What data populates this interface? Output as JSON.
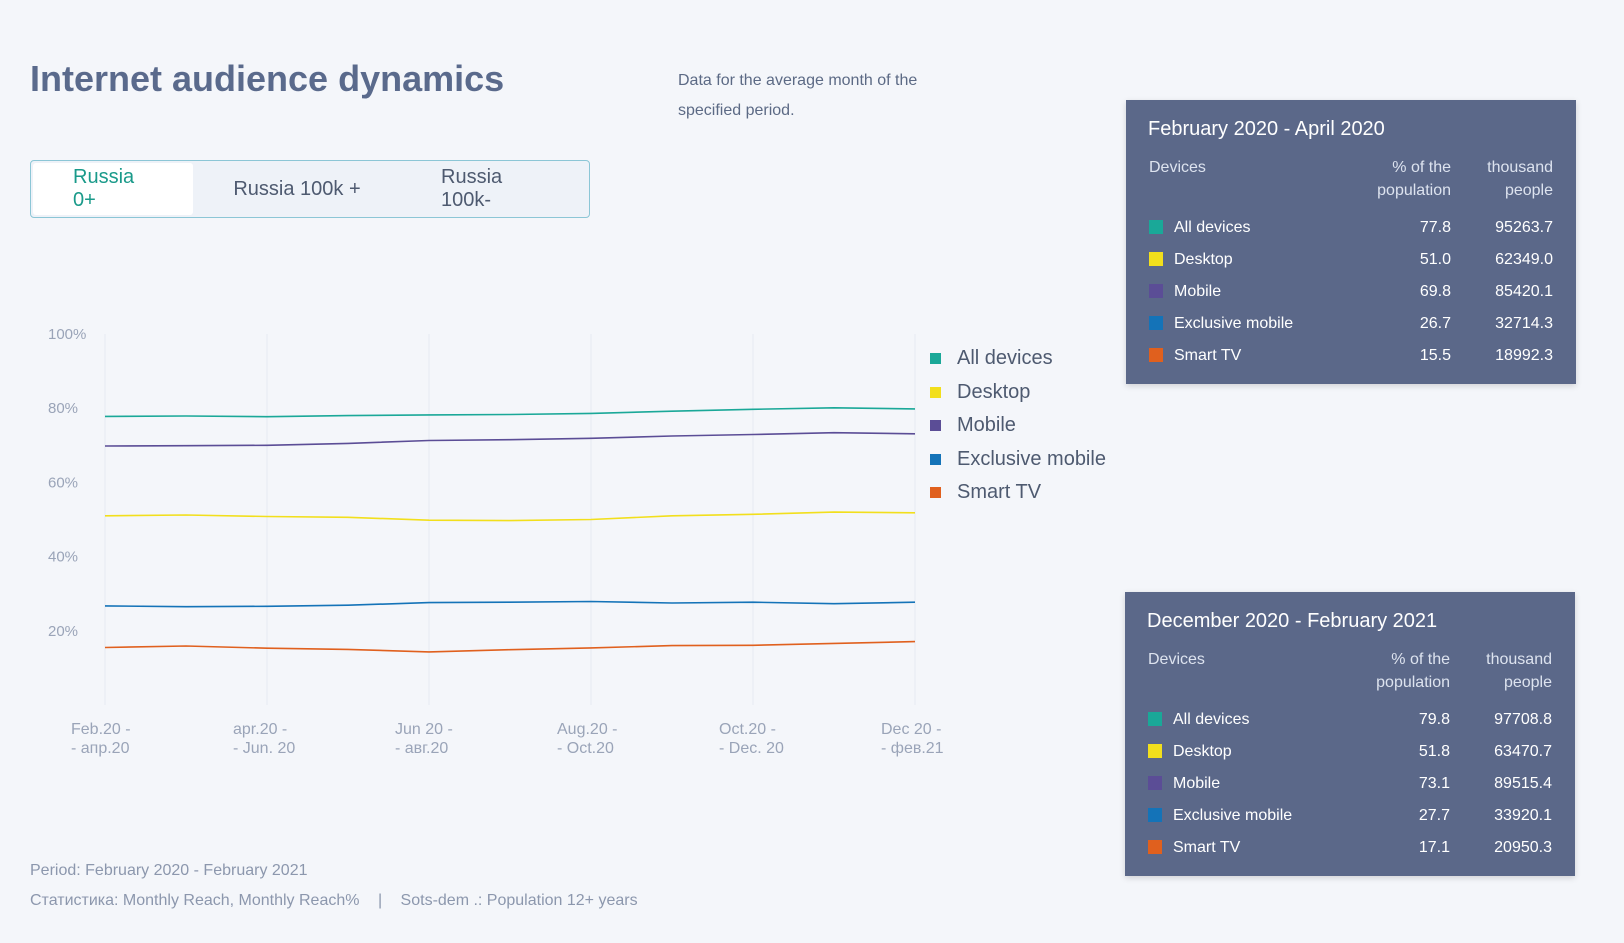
{
  "header": {
    "title": "Internet audience dynamics",
    "subtitle": "Data for the average month of the specified period."
  },
  "tabs": [
    {
      "label": "Russia 0+",
      "active": true
    },
    {
      "label": "Russia 100k +",
      "active": false
    },
    {
      "label": "Russia 100k-",
      "active": false
    }
  ],
  "colors": {
    "all_devices": "#1aa898",
    "desktop": "#f2df1c",
    "mobile": "#5b4d96",
    "exclusive_mobile": "#1473b8",
    "smart_tv": "#e0601e"
  },
  "chart_data": {
    "type": "line",
    "title": "Internet audience dynamics",
    "xlabel": "",
    "ylabel": "",
    "ylim": [
      0,
      100
    ],
    "grid": true,
    "legend_position": "right",
    "y_ticks": [
      "100%",
      "80%",
      "60%",
      "40%",
      "20%"
    ],
    "y_tick_values": [
      100,
      80,
      60,
      40,
      20
    ],
    "x_ticks": [
      {
        "line1": "Feb.20 -",
        "line2": "- апр.20"
      },
      {
        "line1": "apr.20 -",
        "line2": "- Jun. 20"
      },
      {
        "line1": "Jun 20 -",
        "line2": "- авг.20"
      },
      {
        "line1": "Aug.20 -",
        "line2": "- Oct.20"
      },
      {
        "line1": "Oct.20 -",
        "line2": "- Dec. 20"
      },
      {
        "line1": "Dec 20 -",
        "line2": "- фев.21"
      }
    ],
    "x": [
      0,
      1,
      2,
      3,
      4,
      5,
      6,
      7,
      8,
      9,
      10
    ],
    "series": [
      {
        "name": "All devices",
        "color_key": "all_devices",
        "values": [
          77.8,
          77.9,
          77.7,
          78.0,
          78.2,
          78.3,
          78.6,
          79.2,
          79.7,
          80.1,
          79.8
        ]
      },
      {
        "name": "Desktop",
        "color_key": "desktop",
        "values": [
          51.0,
          51.2,
          50.8,
          50.6,
          49.8,
          49.7,
          50.0,
          51.0,
          51.4,
          52.0,
          51.8
        ]
      },
      {
        "name": "Mobile",
        "color_key": "mobile",
        "values": [
          69.8,
          69.9,
          70.0,
          70.5,
          71.3,
          71.5,
          71.9,
          72.5,
          72.9,
          73.4,
          73.1
        ]
      },
      {
        "name": "Exclusive mobile",
        "color_key": "exclusive_mobile",
        "values": [
          26.7,
          26.5,
          26.6,
          26.9,
          27.6,
          27.7,
          27.9,
          27.5,
          27.7,
          27.3,
          27.7
        ]
      },
      {
        "name": "Smart TV",
        "color_key": "smart_tv",
        "values": [
          15.5,
          15.9,
          15.3,
          15.0,
          14.3,
          14.9,
          15.4,
          16.0,
          16.1,
          16.6,
          17.1
        ]
      }
    ]
  },
  "panel_start": {
    "title": "February 2020 - April 2020",
    "col_devices": "Devices",
    "col_pct": "% of the population",
    "col_thousand": "thousand people",
    "rows": [
      {
        "device": "All devices",
        "pct": "77.8",
        "thousand": "95263.7"
      },
      {
        "device": "Desktop",
        "pct": "51.0",
        "thousand": "62349.0"
      },
      {
        "device": "Mobile",
        "pct": "69.8",
        "thousand": "85420.1"
      },
      {
        "device": "Exclusive mobile",
        "pct": "26.7",
        "thousand": "32714.3"
      },
      {
        "device": "Smart TV",
        "pct": "15.5",
        "thousand": "18992.3"
      }
    ]
  },
  "panel_end": {
    "title": "December 2020 - February 2021",
    "col_devices": "Devices",
    "col_pct": "% of the population",
    "col_thousand": "thousand people",
    "rows": [
      {
        "device": "All devices",
        "pct": "79.8",
        "thousand": "97708.8"
      },
      {
        "device": "Desktop",
        "pct": "51.8",
        "thousand": "63470.7"
      },
      {
        "device": "Mobile",
        "pct": "73.1",
        "thousand": "89515.4"
      },
      {
        "device": "Exclusive mobile",
        "pct": "27.7",
        "thousand": "33920.1"
      },
      {
        "device": "Smart TV",
        "pct": "17.1",
        "thousand": "20950.3"
      }
    ]
  },
  "footer": {
    "period": "Period: February 2020 - February 2021",
    "stats": "Статистика: Monthly Reach, Monthly Reach%",
    "separator": "|",
    "sotsdem": "Sots-dem .: Population 12+ years"
  }
}
